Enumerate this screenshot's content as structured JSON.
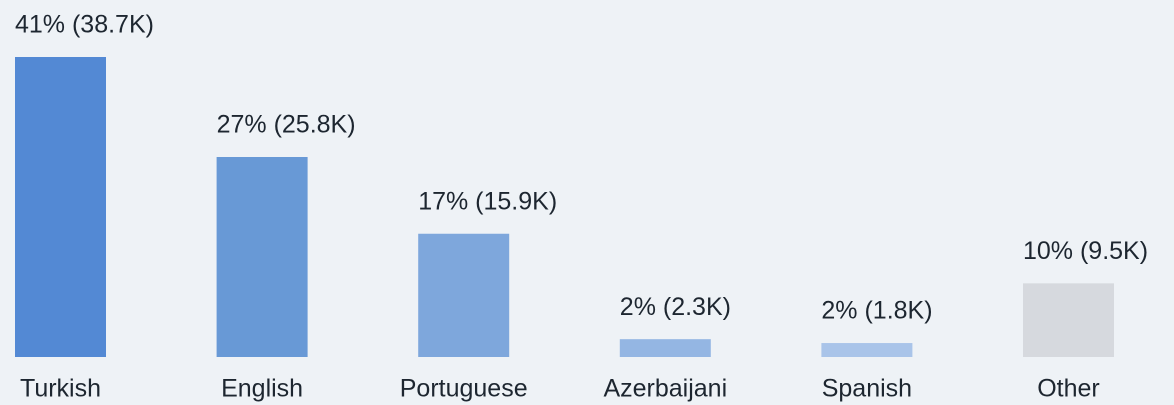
{
  "chart_data": {
    "type": "bar",
    "categories": [
      "Turkish",
      "English",
      "Portuguese",
      "Azerbaijani",
      "Spanish",
      "Other"
    ],
    "values": [
      38700,
      25800,
      15900,
      2300,
      1800,
      9500
    ],
    "value_labels": [
      "41% (38.7K)",
      "27% (25.8K)",
      "17% (15.9K)",
      "2% (2.3K)",
      "2% (1.8K)",
      "10% (9.5K)"
    ],
    "colors": [
      "#5389d4",
      "#6899d6",
      "#7ea7dc",
      "#94b6e3",
      "#a9c4e9",
      "#d6d9de"
    ]
  }
}
